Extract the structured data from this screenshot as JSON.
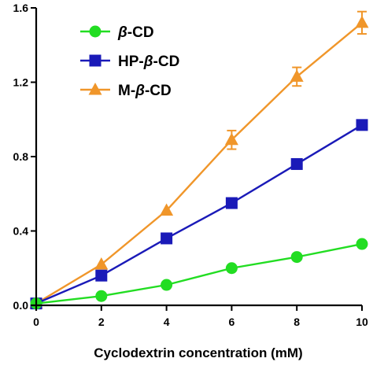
{
  "chart_data": {
    "type": "line",
    "title": "",
    "xlabel": "Cyclodextrin concentration (mM)",
    "ylabel": "",
    "xlim": [
      0,
      10
    ],
    "ylim": [
      0,
      1.6
    ],
    "x_ticks": [
      "0",
      "2",
      "4",
      "6",
      "8",
      "10"
    ],
    "y_ticks": [
      "0.0",
      "0.4",
      "0.8",
      "1.2",
      "1.6"
    ],
    "grid": false,
    "legend_position": "top-left",
    "x": [
      0,
      2,
      4,
      6,
      8,
      10
    ],
    "series": [
      {
        "name": "β-CD",
        "marker": "circle",
        "color": "#22dd22",
        "values": [
          0.01,
          0.05,
          0.11,
          0.2,
          0.26,
          0.33
        ],
        "errors": [
          0,
          0,
          0,
          0,
          0,
          0
        ]
      },
      {
        "name": "HP-β-CD",
        "marker": "square",
        "color": "#1a1ab8",
        "values": [
          0.01,
          0.16,
          0.36,
          0.55,
          0.76,
          0.97
        ],
        "errors": [
          0,
          0,
          0,
          0,
          0,
          0
        ]
      },
      {
        "name": "M-β-CD",
        "marker": "triangle",
        "color": "#f0962a",
        "values": [
          0.01,
          0.22,
          0.51,
          0.89,
          1.23,
          1.52
        ],
        "errors": [
          0,
          0,
          0,
          0.05,
          0.05,
          0.06
        ]
      }
    ]
  }
}
